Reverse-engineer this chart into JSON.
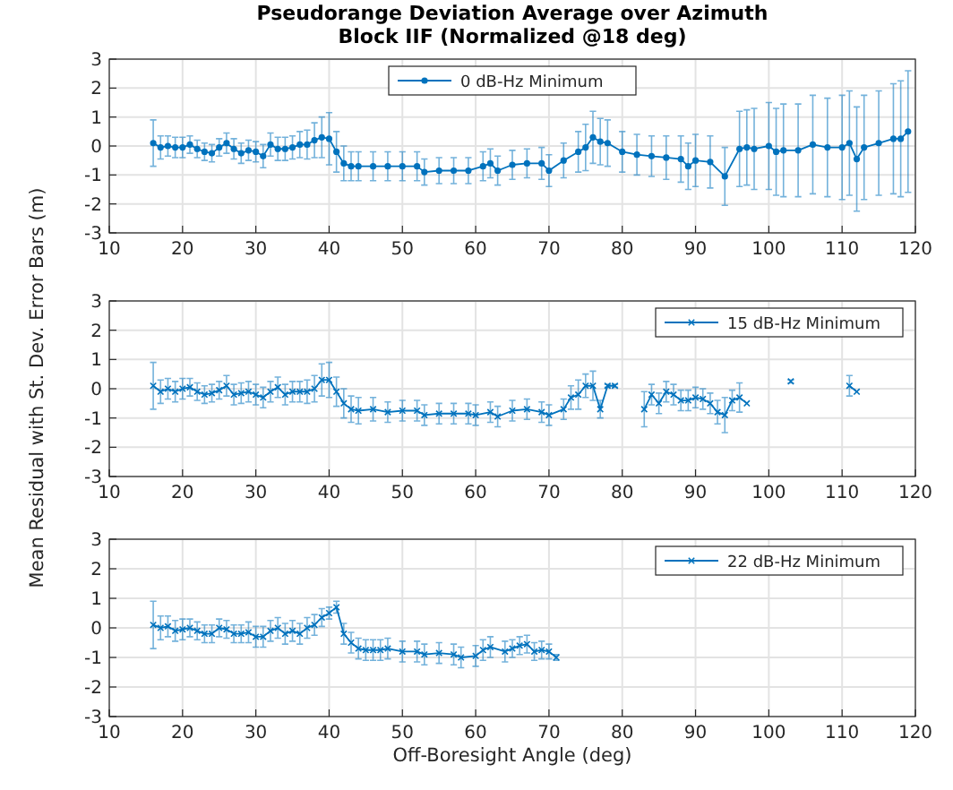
{
  "chart_data": [
    {
      "type": "line",
      "title": "Pseudorange Deviation Average over Azimuth\nBlock IIF (Normalized @18 deg)",
      "xlim": [
        10,
        120
      ],
      "xticks": [
        10,
        20,
        30,
        40,
        50,
        60,
        70,
        80,
        90,
        100,
        110,
        120
      ],
      "ylim": [
        -3,
        3
      ],
      "yticks": [
        -3,
        -2,
        -1,
        0,
        1,
        2,
        3
      ],
      "grid": true,
      "legend": "top",
      "marker": "circle",
      "x": [
        16,
        17,
        18,
        19,
        20,
        21,
        22,
        23,
        24,
        25,
        26,
        27,
        28,
        29,
        30,
        31,
        32,
        33,
        34,
        35,
        36,
        37,
        38,
        39,
        40,
        41,
        42,
        43,
        44,
        46,
        48,
        50,
        52,
        53,
        55,
        57,
        59,
        61,
        62,
        63,
        65,
        67,
        69,
        70,
        72,
        74,
        75,
        76,
        77,
        78,
        80,
        82,
        84,
        86,
        88,
        89,
        90,
        92,
        94,
        96,
        97,
        98,
        100,
        101,
        102,
        104,
        106,
        108,
        110,
        111,
        112,
        113,
        115,
        117,
        118,
        119
      ],
      "series": [
        {
          "name": "0 dB-Hz Minimum",
          "color": "#0072bd",
          "values": [
            0.1,
            -0.05,
            0,
            -0.05,
            -0.05,
            0.05,
            -0.1,
            -0.2,
            -0.25,
            -0.05,
            0.1,
            -0.1,
            -0.25,
            -0.15,
            -0.2,
            -0.35,
            0.05,
            -0.1,
            -0.1,
            -0.05,
            0.05,
            0.05,
            0.2,
            0.3,
            0.25,
            -0.2,
            -0.6,
            -0.7,
            -0.7,
            -0.7,
            -0.7,
            -0.7,
            -0.7,
            -0.9,
            -0.85,
            -0.85,
            -0.85,
            -0.7,
            -0.6,
            -0.85,
            -0.65,
            -0.6,
            -0.6,
            -0.85,
            -0.5,
            -0.2,
            -0.05,
            0.3,
            0.15,
            0.1,
            -0.2,
            -0.3,
            -0.35,
            -0.4,
            -0.45,
            -0.7,
            -0.5,
            -0.55,
            -1.05,
            -0.1,
            -0.05,
            -0.1,
            0,
            -0.2,
            -0.15,
            -0.15,
            0.05,
            -0.05,
            -0.05,
            0.1,
            -0.45,
            -0.05,
            0.1,
            0.25,
            0.25,
            0.5
          ],
          "errors": [
            0.8,
            0.4,
            0.35,
            0.35,
            0.35,
            0.3,
            0.3,
            0.3,
            0.3,
            0.3,
            0.35,
            0.35,
            0.35,
            0.35,
            0.35,
            0.4,
            0.4,
            0.4,
            0.4,
            0.4,
            0.45,
            0.5,
            0.6,
            0.7,
            0.9,
            0.7,
            0.6,
            0.5,
            0.5,
            0.5,
            0.5,
            0.5,
            0.5,
            0.45,
            0.45,
            0.45,
            0.45,
            0.5,
            0.5,
            0.5,
            0.5,
            0.5,
            0.55,
            0.55,
            0.6,
            0.7,
            0.8,
            0.9,
            0.8,
            0.8,
            0.7,
            0.7,
            0.7,
            0.75,
            0.8,
            0.8,
            0.9,
            0.9,
            1.0,
            1.3,
            1.3,
            1.4,
            1.5,
            1.5,
            1.6,
            1.6,
            1.7,
            1.7,
            1.8,
            1.8,
            1.8,
            1.8,
            1.8,
            1.9,
            2.0,
            2.1
          ]
        }
      ]
    },
    {
      "type": "line",
      "ylabel": "Mean Residual with St. Dev. Error Bars (m)",
      "xlim": [
        10,
        120
      ],
      "xticks": [
        10,
        20,
        30,
        40,
        50,
        60,
        70,
        80,
        90,
        100,
        110,
        120
      ],
      "ylim": [
        -3,
        3
      ],
      "yticks": [
        -3,
        -2,
        -1,
        0,
        1,
        2,
        3
      ],
      "grid": true,
      "legend": "top right",
      "marker": "cross",
      "x": [
        16,
        17,
        18,
        19,
        20,
        21,
        22,
        23,
        24,
        25,
        26,
        27,
        28,
        29,
        30,
        31,
        32,
        33,
        34,
        35,
        36,
        37,
        38,
        39,
        40,
        41,
        42,
        43,
        44,
        46,
        48,
        50,
        52,
        53,
        55,
        57,
        59,
        60,
        62,
        63,
        65,
        67,
        69,
        70,
        72,
        73,
        74,
        75,
        76,
        77,
        78,
        79,
        81,
        83,
        84,
        85,
        86,
        87,
        88,
        89,
        90,
        91,
        92,
        93,
        94,
        95,
        96,
        97,
        100,
        103,
        107,
        111,
        112
      ],
      "series": [
        {
          "name": "15 dB-Hz Minimum",
          "color": "#0072bd",
          "values": [
            0.1,
            -0.1,
            0,
            -0.1,
            0,
            0.05,
            -0.1,
            -0.2,
            -0.15,
            -0.05,
            0.1,
            -0.2,
            -0.15,
            -0.1,
            -0.2,
            -0.3,
            -0.1,
            0.05,
            -0.2,
            -0.1,
            -0.1,
            -0.1,
            0,
            0.3,
            0.3,
            -0.1,
            -0.5,
            -0.7,
            -0.75,
            -0.7,
            -0.8,
            -0.75,
            -0.75,
            -0.9,
            -0.85,
            -0.85,
            -0.85,
            -0.9,
            -0.8,
            -0.95,
            -0.75,
            -0.7,
            -0.8,
            -0.9,
            -0.7,
            -0.3,
            -0.2,
            0.1,
            0.1,
            -0.7,
            0.1,
            0.1,
            null,
            -0.7,
            -0.2,
            -0.5,
            -0.1,
            -0.2,
            -0.4,
            -0.4,
            -0.3,
            -0.35,
            -0.5,
            -0.8,
            -0.9,
            -0.4,
            -0.3,
            -0.5,
            null,
            0.25,
            null,
            0.1,
            -0.1
          ],
          "errors": [
            0.8,
            0.4,
            0.35,
            0.35,
            0.35,
            0.3,
            0.3,
            0.3,
            0.3,
            0.3,
            0.35,
            0.35,
            0.35,
            0.35,
            0.35,
            0.35,
            0.35,
            0.35,
            0.35,
            0.35,
            0.35,
            0.4,
            0.45,
            0.55,
            0.6,
            0.5,
            0.5,
            0.45,
            0.45,
            0.4,
            0.35,
            0.35,
            0.35,
            0.35,
            0.35,
            0.35,
            0.35,
            0.35,
            0.35,
            0.35,
            0.35,
            0.35,
            0.35,
            0.35,
            0.35,
            0.4,
            0.5,
            0.4,
            0.5,
            0.3,
            0.05,
            0.05,
            null,
            0.6,
            0.35,
            0.35,
            0.35,
            0.35,
            0.35,
            0.35,
            0.35,
            0.35,
            0.35,
            0.4,
            0.6,
            0.35,
            0.5,
            null,
            null,
            0.05,
            null,
            0.35,
            null
          ]
        }
      ]
    },
    {
      "type": "line",
      "xlabel": "Off-Boresight Angle (deg)",
      "xlim": [
        10,
        120
      ],
      "xticks": [
        10,
        20,
        30,
        40,
        50,
        60,
        70,
        80,
        90,
        100,
        110,
        120
      ],
      "ylim": [
        -3,
        3
      ],
      "yticks": [
        -3,
        -2,
        -1,
        0,
        1,
        2,
        3
      ],
      "grid": true,
      "legend": "top right",
      "marker": "cross",
      "x": [
        16,
        17,
        18,
        19,
        20,
        21,
        22,
        23,
        24,
        25,
        26,
        27,
        28,
        29,
        30,
        31,
        32,
        33,
        34,
        35,
        36,
        37,
        38,
        39,
        40,
        41,
        42,
        43,
        44,
        45,
        46,
        47,
        48,
        50,
        52,
        53,
        55,
        57,
        58,
        60,
        61,
        62,
        64,
        65,
        66,
        67,
        68,
        69,
        70,
        71
      ],
      "series": [
        {
          "name": "22 dB-Hz Minimum",
          "color": "#0072bd",
          "values": [
            0.1,
            0,
            0.05,
            -0.1,
            -0.05,
            0,
            -0.1,
            -0.2,
            -0.2,
            0,
            -0.05,
            -0.2,
            -0.2,
            -0.15,
            -0.3,
            -0.3,
            -0.1,
            0,
            -0.2,
            -0.1,
            -0.2,
            0,
            0.1,
            0.35,
            0.5,
            0.7,
            -0.2,
            -0.5,
            -0.7,
            -0.75,
            -0.75,
            -0.75,
            -0.7,
            -0.8,
            -0.8,
            -0.9,
            -0.85,
            -0.9,
            -1.0,
            -0.95,
            -0.75,
            -0.65,
            -0.8,
            -0.7,
            -0.6,
            -0.55,
            -0.8,
            -0.75,
            -0.8,
            -1.0
          ],
          "errors": [
            0.8,
            0.4,
            0.35,
            0.35,
            0.35,
            0.3,
            0.3,
            0.3,
            0.3,
            0.3,
            0.3,
            0.3,
            0.3,
            0.35,
            0.35,
            0.35,
            0.35,
            0.35,
            0.35,
            0.35,
            0.35,
            0.35,
            0.35,
            0.3,
            0.2,
            0.2,
            0.35,
            0.35,
            0.35,
            0.35,
            0.35,
            0.35,
            0.35,
            0.35,
            0.35,
            0.35,
            0.35,
            0.35,
            0.35,
            0.35,
            0.35,
            0.35,
            0.35,
            0.3,
            0.3,
            0.3,
            0.3,
            0.3,
            0.25,
            0.1
          ]
        }
      ]
    }
  ]
}
